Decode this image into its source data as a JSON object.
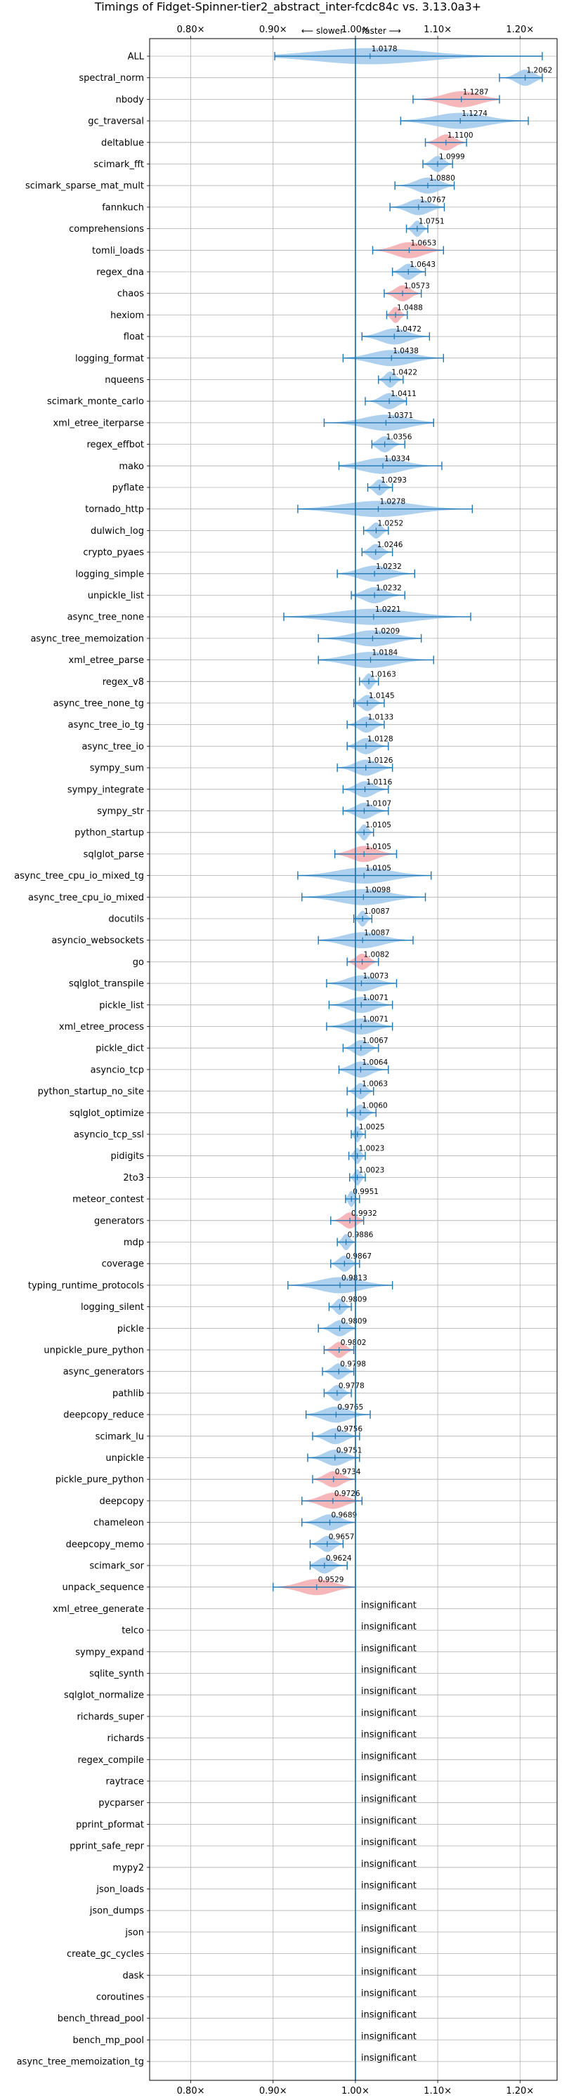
{
  "chart_data": {
    "type": "violin",
    "title": "Timings of Fidget-Spinner-tier2_abstract_inter-fcdc84c vs. 3.13.0a3+",
    "subtitle_left": "⟵ slower",
    "subtitle_right": "faster ⟶",
    "xlim": [
      0.75,
      1.245
    ],
    "x_ticks": [
      0.8,
      0.9,
      1.0,
      1.1,
      1.2
    ],
    "x_tick_labels": [
      "0.80×",
      "0.90×",
      "1.00×",
      "1.10×",
      "1.20×"
    ],
    "reference_line": 1.0,
    "grid": true,
    "colors": {
      "faster": "#9ec8ea",
      "slower": "#f4aaaf",
      "bar": "#1f77b4",
      "refline": "#1f77b4",
      "grid": "#b0b0b0"
    },
    "insignificant_label": "insignificant",
    "benchmarks": [
      {
        "name": "ALL",
        "mean": 1.0178,
        "min": 0.902,
        "max": 1.227,
        "status": "faster"
      },
      {
        "name": "spectral_norm",
        "mean": 1.2062,
        "min": 1.175,
        "max": 1.227,
        "status": "faster"
      },
      {
        "name": "nbody",
        "mean": 1.1287,
        "min": 1.07,
        "max": 1.175,
        "status": "slower"
      },
      {
        "name": "gc_traversal",
        "mean": 1.1274,
        "min": 1.055,
        "max": 1.21,
        "status": "faster"
      },
      {
        "name": "deltablue",
        "mean": 1.11,
        "min": 1.085,
        "max": 1.135,
        "status": "slower"
      },
      {
        "name": "scimark_fft",
        "mean": 1.0999,
        "min": 1.082,
        "max": 1.118,
        "status": "faster"
      },
      {
        "name": "scimark_sparse_mat_mult",
        "mean": 1.088,
        "min": 1.048,
        "max": 1.12,
        "status": "faster"
      },
      {
        "name": "fannkuch",
        "mean": 1.0767,
        "min": 1.042,
        "max": 1.108,
        "status": "faster"
      },
      {
        "name": "comprehensions",
        "mean": 1.0751,
        "min": 1.062,
        "max": 1.088,
        "status": "faster"
      },
      {
        "name": "tomli_loads",
        "mean": 1.0653,
        "min": 1.021,
        "max": 1.107,
        "status": "slower"
      },
      {
        "name": "regex_dna",
        "mean": 1.0643,
        "min": 1.045,
        "max": 1.085,
        "status": "faster"
      },
      {
        "name": "chaos",
        "mean": 1.0573,
        "min": 1.035,
        "max": 1.08,
        "status": "slower"
      },
      {
        "name": "hexiom",
        "mean": 1.0488,
        "min": 1.038,
        "max": 1.063,
        "status": "slower"
      },
      {
        "name": "float",
        "mean": 1.0472,
        "min": 1.008,
        "max": 1.09,
        "status": "faster"
      },
      {
        "name": "logging_format",
        "mean": 1.0438,
        "min": 0.985,
        "max": 1.107,
        "status": "faster"
      },
      {
        "name": "nqueens",
        "mean": 1.0422,
        "min": 1.028,
        "max": 1.058,
        "status": "faster"
      },
      {
        "name": "scimark_monte_carlo",
        "mean": 1.0411,
        "min": 1.012,
        "max": 1.062,
        "status": "faster"
      },
      {
        "name": "xml_etree_iterparse",
        "mean": 1.0371,
        "min": 0.962,
        "max": 1.095,
        "status": "faster"
      },
      {
        "name": "regex_effbot",
        "mean": 1.0356,
        "min": 1.02,
        "max": 1.06,
        "status": "faster"
      },
      {
        "name": "mako",
        "mean": 1.0334,
        "min": 0.98,
        "max": 1.105,
        "status": "faster"
      },
      {
        "name": "pyflate",
        "mean": 1.0293,
        "min": 1.015,
        "max": 1.045,
        "status": "faster"
      },
      {
        "name": "tornado_http",
        "mean": 1.0278,
        "min": 0.93,
        "max": 1.142,
        "status": "faster"
      },
      {
        "name": "dulwich_log",
        "mean": 1.0252,
        "min": 1.01,
        "max": 1.04,
        "status": "faster"
      },
      {
        "name": "crypto_pyaes",
        "mean": 1.0246,
        "min": 1.008,
        "max": 1.045,
        "status": "faster"
      },
      {
        "name": "logging_simple",
        "mean": 1.0232,
        "min": 0.978,
        "max": 1.072,
        "status": "faster"
      },
      {
        "name": "unpickle_list",
        "mean": 1.0232,
        "min": 0.995,
        "max": 1.06,
        "status": "faster"
      },
      {
        "name": "async_tree_none",
        "mean": 1.0221,
        "min": 0.913,
        "max": 1.14,
        "status": "faster"
      },
      {
        "name": "async_tree_memoization",
        "mean": 1.0209,
        "min": 0.955,
        "max": 1.08,
        "status": "faster"
      },
      {
        "name": "xml_etree_parse",
        "mean": 1.0184,
        "min": 0.955,
        "max": 1.095,
        "status": "faster"
      },
      {
        "name": "regex_v8",
        "mean": 1.0163,
        "min": 1.005,
        "max": 1.028,
        "status": "faster"
      },
      {
        "name": "async_tree_none_tg",
        "mean": 1.0145,
        "min": 0.998,
        "max": 1.035,
        "status": "faster"
      },
      {
        "name": "async_tree_io_tg",
        "mean": 1.0133,
        "min": 0.99,
        "max": 1.035,
        "status": "faster"
      },
      {
        "name": "async_tree_io",
        "mean": 1.0128,
        "min": 0.99,
        "max": 1.04,
        "status": "faster"
      },
      {
        "name": "sympy_sum",
        "mean": 1.0126,
        "min": 0.978,
        "max": 1.045,
        "status": "faster"
      },
      {
        "name": "sympy_integrate",
        "mean": 1.0116,
        "min": 0.985,
        "max": 1.04,
        "status": "faster"
      },
      {
        "name": "sympy_str",
        "mean": 1.0107,
        "min": 0.985,
        "max": 1.04,
        "status": "faster"
      },
      {
        "name": "python_startup",
        "mean": 1.0105,
        "min": 1.0,
        "max": 1.022,
        "status": "faster"
      },
      {
        "name": "sqlglot_parse",
        "mean": 1.0105,
        "min": 0.975,
        "max": 1.05,
        "status": "slower"
      },
      {
        "name": "async_tree_cpu_io_mixed_tg",
        "mean": 1.0105,
        "min": 0.93,
        "max": 1.092,
        "status": "faster"
      },
      {
        "name": "async_tree_cpu_io_mixed",
        "mean": 1.0098,
        "min": 0.935,
        "max": 1.085,
        "status": "faster"
      },
      {
        "name": "docutils",
        "mean": 1.0087,
        "min": 0.998,
        "max": 1.02,
        "status": "faster"
      },
      {
        "name": "asyncio_websockets",
        "mean": 1.0087,
        "min": 0.955,
        "max": 1.07,
        "status": "faster"
      },
      {
        "name": "go",
        "mean": 1.0082,
        "min": 0.99,
        "max": 1.028,
        "status": "slower"
      },
      {
        "name": "sqlglot_transpile",
        "mean": 1.0073,
        "min": 0.965,
        "max": 1.05,
        "status": "faster"
      },
      {
        "name": "pickle_list",
        "mean": 1.0071,
        "min": 0.968,
        "max": 1.045,
        "status": "faster"
      },
      {
        "name": "xml_etree_process",
        "mean": 1.0071,
        "min": 0.965,
        "max": 1.045,
        "status": "faster"
      },
      {
        "name": "pickle_dict",
        "mean": 1.0067,
        "min": 0.985,
        "max": 1.028,
        "status": "faster"
      },
      {
        "name": "asyncio_tcp",
        "mean": 1.0064,
        "min": 0.98,
        "max": 1.04,
        "status": "faster"
      },
      {
        "name": "python_startup_no_site",
        "mean": 1.0063,
        "min": 0.99,
        "max": 1.022,
        "status": "faster"
      },
      {
        "name": "sqlglot_optimize",
        "mean": 1.006,
        "min": 0.99,
        "max": 1.025,
        "status": "faster"
      },
      {
        "name": "asyncio_tcp_ssl",
        "mean": 1.0025,
        "min": 0.995,
        "max": 1.012,
        "status": "faster"
      },
      {
        "name": "pidigits",
        "mean": 1.0023,
        "min": 0.992,
        "max": 1.012,
        "status": "faster"
      },
      {
        "name": "2to3",
        "mean": 1.0023,
        "min": 0.993,
        "max": 1.012,
        "status": "faster"
      },
      {
        "name": "meteor_contest",
        "mean": 0.9951,
        "min": 0.988,
        "max": 1.005,
        "status": "faster"
      },
      {
        "name": "generators",
        "mean": 0.9932,
        "min": 0.97,
        "max": 1.01,
        "status": "slower"
      },
      {
        "name": "mdp",
        "mean": 0.9886,
        "min": 0.978,
        "max": 1.0,
        "status": "faster"
      },
      {
        "name": "coverage",
        "mean": 0.9867,
        "min": 0.97,
        "max": 1.005,
        "status": "faster"
      },
      {
        "name": "typing_runtime_protocols",
        "mean": 0.9813,
        "min": 0.918,
        "max": 1.045,
        "status": "faster"
      },
      {
        "name": "logging_silent",
        "mean": 0.9809,
        "min": 0.968,
        "max": 0.995,
        "status": "faster"
      },
      {
        "name": "pickle",
        "mean": 0.9809,
        "min": 0.955,
        "max": 1.0,
        "status": "faster"
      },
      {
        "name": "unpickle_pure_python",
        "mean": 0.9802,
        "min": 0.962,
        "max": 0.998,
        "status": "slower"
      },
      {
        "name": "async_generators",
        "mean": 0.9798,
        "min": 0.96,
        "max": 0.998,
        "status": "faster"
      },
      {
        "name": "pathlib",
        "mean": 0.9778,
        "min": 0.962,
        "max": 0.995,
        "status": "faster"
      },
      {
        "name": "deepcopy_reduce",
        "mean": 0.9765,
        "min": 0.94,
        "max": 1.018,
        "status": "faster"
      },
      {
        "name": "scimark_lu",
        "mean": 0.9756,
        "min": 0.948,
        "max": 1.005,
        "status": "faster"
      },
      {
        "name": "unpickle",
        "mean": 0.9751,
        "min": 0.942,
        "max": 1.005,
        "status": "faster"
      },
      {
        "name": "pickle_pure_python",
        "mean": 0.9734,
        "min": 0.948,
        "max": 1.0,
        "status": "slower"
      },
      {
        "name": "deepcopy",
        "mean": 0.9726,
        "min": 0.935,
        "max": 1.008,
        "status": "slower"
      },
      {
        "name": "chameleon",
        "mean": 0.9689,
        "min": 0.935,
        "max": 1.0,
        "status": "faster"
      },
      {
        "name": "deepcopy_memo",
        "mean": 0.9657,
        "min": 0.945,
        "max": 0.985,
        "status": "faster"
      },
      {
        "name": "scimark_sor",
        "mean": 0.9624,
        "min": 0.945,
        "max": 0.99,
        "status": "faster"
      },
      {
        "name": "unpack_sequence",
        "mean": 0.9529,
        "min": 0.9,
        "max": 1.0,
        "status": "slower"
      },
      {
        "name": "xml_etree_generate",
        "status": "insignificant"
      },
      {
        "name": "telco",
        "status": "insignificant"
      },
      {
        "name": "sympy_expand",
        "status": "insignificant"
      },
      {
        "name": "sqlite_synth",
        "status": "insignificant"
      },
      {
        "name": "sqlglot_normalize",
        "status": "insignificant"
      },
      {
        "name": "richards_super",
        "status": "insignificant"
      },
      {
        "name": "richards",
        "status": "insignificant"
      },
      {
        "name": "regex_compile",
        "status": "insignificant"
      },
      {
        "name": "raytrace",
        "status": "insignificant"
      },
      {
        "name": "pycparser",
        "status": "insignificant"
      },
      {
        "name": "pprint_pformat",
        "status": "insignificant"
      },
      {
        "name": "pprint_safe_repr",
        "status": "insignificant"
      },
      {
        "name": "mypy2",
        "status": "insignificant"
      },
      {
        "name": "json_loads",
        "status": "insignificant"
      },
      {
        "name": "json_dumps",
        "status": "insignificant"
      },
      {
        "name": "json",
        "status": "insignificant"
      },
      {
        "name": "create_gc_cycles",
        "status": "insignificant"
      },
      {
        "name": "dask",
        "status": "insignificant"
      },
      {
        "name": "coroutines",
        "status": "insignificant"
      },
      {
        "name": "bench_thread_pool",
        "status": "insignificant"
      },
      {
        "name": "bench_mp_pool",
        "status": "insignificant"
      },
      {
        "name": "async_tree_memoization_tg",
        "status": "insignificant"
      }
    ]
  }
}
